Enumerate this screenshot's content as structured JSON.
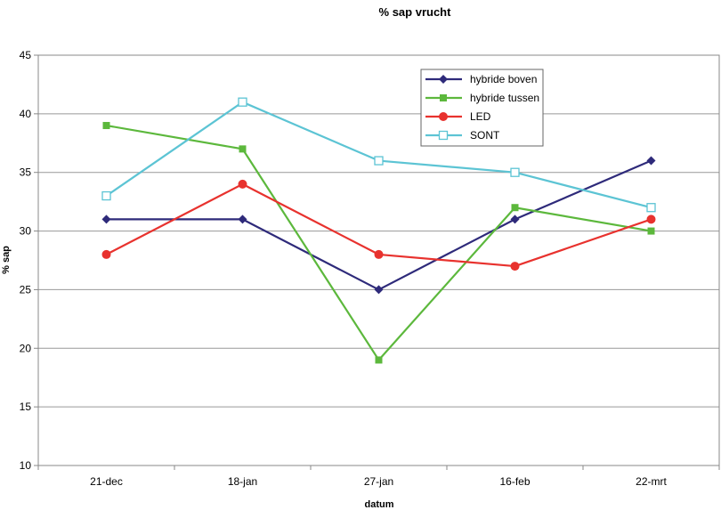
{
  "chart_data": {
    "type": "line",
    "title": "% sap vrucht",
    "xlabel": "datum",
    "ylabel": "% sap",
    "categories": [
      "21-dec",
      "18-jan",
      "27-jan",
      "16-feb",
      "22-mrt"
    ],
    "ylim": [
      10,
      45
    ],
    "yticks": [
      10,
      15,
      20,
      25,
      30,
      35,
      40,
      45
    ],
    "grid": true,
    "legend_position": "top-right",
    "series": [
      {
        "name": "hybride boven",
        "color": "#2e2a7a",
        "marker": "diamond",
        "values": [
          31,
          31,
          25,
          31,
          36
        ]
      },
      {
        "name": "hybride tussen",
        "color": "#5cb83c",
        "marker": "square",
        "values": [
          39,
          37,
          19,
          32,
          30
        ]
      },
      {
        "name": "LED",
        "color": "#e8322e",
        "marker": "circle",
        "values": [
          28,
          34,
          28,
          27,
          31
        ]
      },
      {
        "name": "SONT",
        "color": "#5cc4d4",
        "marker": "open-square",
        "values": [
          33,
          41,
          36,
          35,
          32
        ]
      }
    ]
  }
}
